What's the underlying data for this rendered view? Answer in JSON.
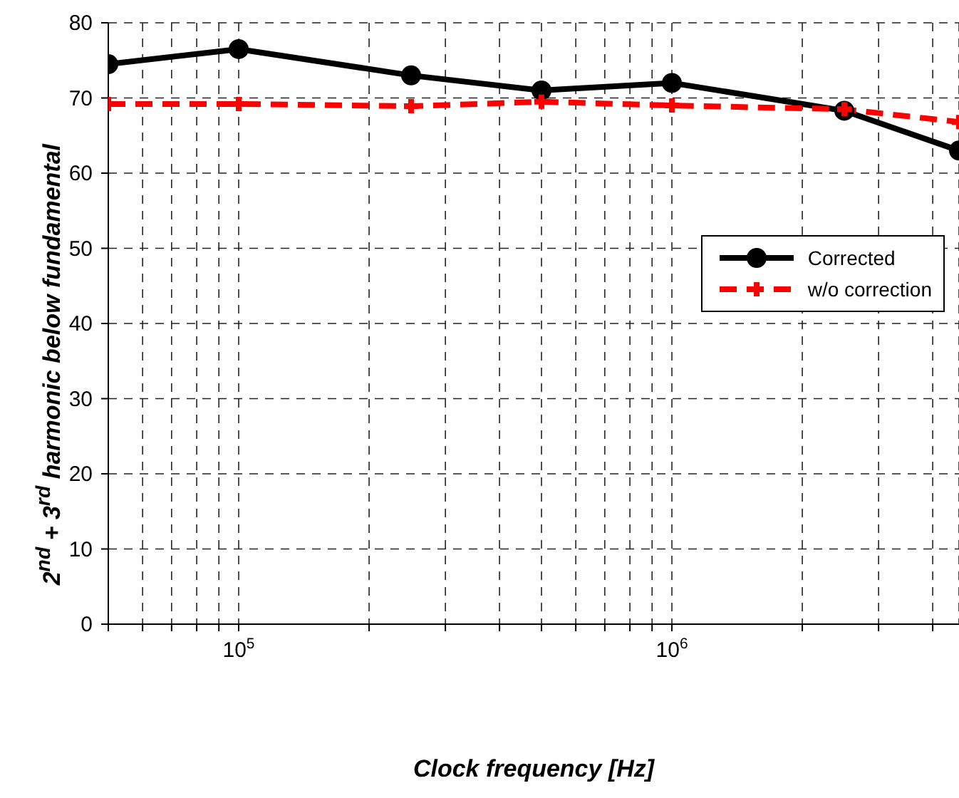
{
  "chart_data": {
    "type": "line",
    "xlabel": "Clock frequency [Hz]",
    "ylabel": "2$^{nd}$ + 3$^{rd}$ harmonic below fundamental",
    "log": "x",
    "grid": true,
    "legend": "right",
    "xlim": [
      50000,
      4600000
    ],
    "xticks": [
      {
        "value": 50000,
        "label": null
      },
      {
        "value": 60000,
        "label": null
      },
      {
        "value": 70000,
        "label": null
      },
      {
        "value": 80000,
        "label": null
      },
      {
        "value": 90000,
        "label": null
      },
      {
        "value": 100000,
        "label": "10$^{5}$"
      },
      {
        "value": 200000,
        "label": null
      },
      {
        "value": 300000,
        "label": null
      },
      {
        "value": 400000,
        "label": null
      },
      {
        "value": 500000,
        "label": null
      },
      {
        "value": 600000,
        "label": null
      },
      {
        "value": 700000,
        "label": null
      },
      {
        "value": 800000,
        "label": null
      },
      {
        "value": 900000,
        "label": null
      },
      {
        "value": 1000000,
        "label": "10$^{6}$"
      },
      {
        "value": 2000000,
        "label": null
      },
      {
        "value": 3000000,
        "label": null
      },
      {
        "value": 4000000,
        "label": null
      }
    ],
    "ylim": [
      0,
      80
    ],
    "yticks": [
      0,
      10,
      20,
      30,
      40,
      50,
      60,
      70,
      80
    ],
    "series": [
      {
        "name": "Corrected",
        "color": "#000000",
        "marker": "circle",
        "line_style": "solid",
        "x": [
          50000,
          100000,
          250000,
          500000,
          1000000,
          2500000,
          4600000
        ],
        "values": [
          74.5,
          76.5,
          73,
          71,
          72,
          68.3,
          63
        ]
      },
      {
        "name": "w/o correction",
        "color": "#ff0000",
        "marker": "cross",
        "line_style": "dashed",
        "x": [
          50000,
          100000,
          250000,
          500000,
          1000000,
          2500000,
          4600000
        ],
        "values": [
          69.2,
          69.2,
          68.9,
          69.5,
          69,
          68.5,
          66.8
        ]
      }
    ]
  }
}
